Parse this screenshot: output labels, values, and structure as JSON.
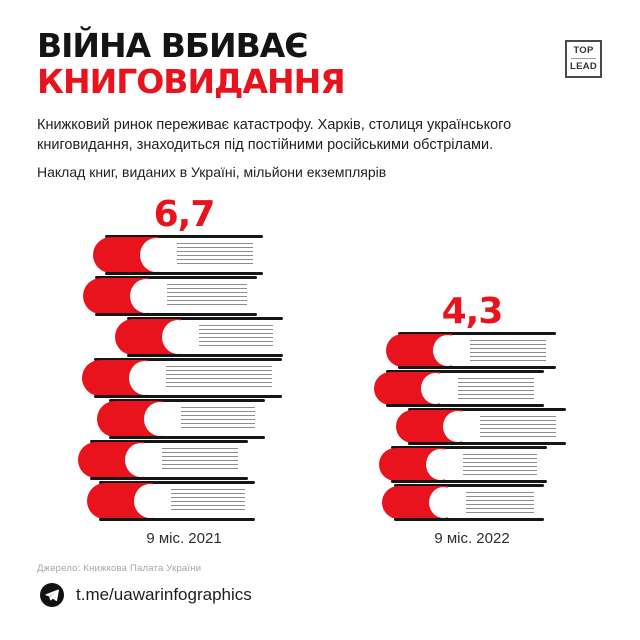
{
  "header": {
    "title_line1": "ВІЙНА ВБИВАЄ",
    "title_line2": "КНИГОВИДАННЯ",
    "logo": {
      "top": "TOP",
      "bottom": "LEAD"
    }
  },
  "intro": {
    "paragraph": "Книжковий ринок переживає катастрофу. Харків, столиця українського книговидання, знаходиться під постійними російськими обстрілами.",
    "subtitle": "Наклад книг, виданих в Україні, мільйони екземплярів"
  },
  "chart_data": {
    "type": "bar",
    "style": "pictorial-book-stacks",
    "title": "Наклад книг, виданих в Україні, мільйони екземплярів",
    "categories": [
      "9 міс. 2021",
      "9 міс. 2022"
    ],
    "values": [
      6.7,
      4.3
    ],
    "value_labels": [
      "6,7",
      "4,3"
    ],
    "book_counts": [
      7,
      5
    ],
    "unit": "мільйони екземплярів",
    "ylim": [
      0,
      7
    ],
    "grid": false,
    "legend_position": "none",
    "accent_color": "#e8131d"
  },
  "footer": {
    "source": "Джерело: Книжкова Палата України",
    "telegram": "t.me/uawarinfographics"
  }
}
